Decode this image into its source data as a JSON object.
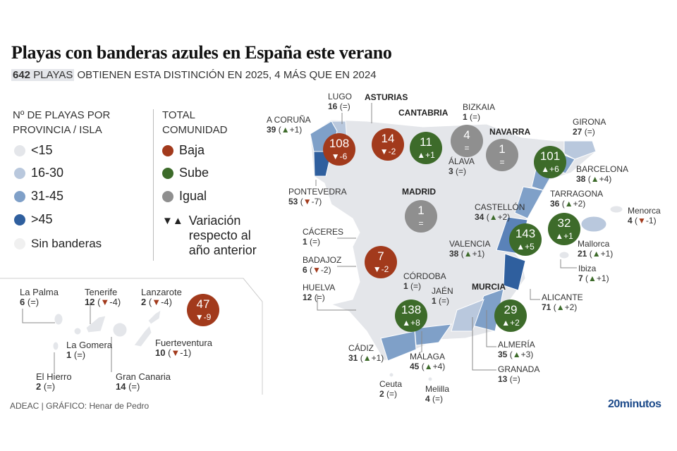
{
  "title": "Playas con banderas azules en España este verano",
  "subtitle": {
    "count": "642",
    "highlight_rest": "PLAYAS",
    "rest": " OBTIENEN ESTA DISTINCIÓN EN 2025, 4 MÁS QUE EN 2024"
  },
  "legend": {
    "scale_title_1": "Nº DE PLAYAS POR",
    "scale_title_2": "PROVINCIA / ISLA",
    "scale": [
      {
        "label": "<15",
        "color": "#e4e6ea"
      },
      {
        "label": "16-30",
        "color": "#b9c8dd"
      },
      {
        "label": "31-45",
        "color": "#7fa0c8"
      },
      {
        "label": ">45",
        "color": "#2f5f9e"
      },
      {
        "label": "Sin banderas",
        "color": "#f0f0f0"
      }
    ],
    "total_title_1": "TOTAL",
    "total_title_2": "COMUNIDAD",
    "totals": [
      {
        "label": "Baja",
        "color": "#a23a1c"
      },
      {
        "label": "Sube",
        "color": "#3d6b2a"
      },
      {
        "label": "Igual",
        "color": "#8f8f8f"
      }
    ],
    "variation_symbol": "▼▲",
    "variation_1": "Variación",
    "variation_2": "respecto al",
    "variation_3": "año anterior"
  },
  "community_labels": [
    "ASTURIAS",
    "CANTABRIA",
    "NAVARRA",
    "MADRID",
    "MURCIA"
  ],
  "communities": [
    {
      "total": "108",
      "change": "-6",
      "trend": "baja"
    },
    {
      "total": "14",
      "change": "-2",
      "trend": "baja"
    },
    {
      "total": "11",
      "change": "+1",
      "trend": "sube"
    },
    {
      "total": "4",
      "change": "=",
      "trend": "igual"
    },
    {
      "total": "1",
      "change": "=",
      "trend": "igual"
    },
    {
      "total": "101",
      "change": "+6",
      "trend": "sube"
    },
    {
      "total": "1",
      "change": "=",
      "trend": "igual"
    },
    {
      "total": "143",
      "change": "+5",
      "trend": "sube"
    },
    {
      "total": "32",
      "change": "+1",
      "trend": "sube"
    },
    {
      "total": "7",
      "change": "-2",
      "trend": "baja"
    },
    {
      "total": "138",
      "change": "+8",
      "trend": "sube"
    },
    {
      "total": "29",
      "change": "+2",
      "trend": "sube"
    },
    {
      "total": "47",
      "change": "-9",
      "trend": "baja"
    }
  ],
  "provinces": [
    {
      "name": "LUGO",
      "count": "16",
      "change": "="
    },
    {
      "name": "BIZKAIA",
      "count": "1",
      "change": "="
    },
    {
      "name": "A CORUÑA",
      "count": "39",
      "change": "+1"
    },
    {
      "name": "GIRONA",
      "count": "27",
      "change": "="
    },
    {
      "name": "ÁLAVA",
      "count": "3",
      "change": "="
    },
    {
      "name": "BARCELONA",
      "count": "38",
      "change": "+4"
    },
    {
      "name": "PONTEVEDRA",
      "count": "53",
      "change": "-7"
    },
    {
      "name": "TARRAGONA",
      "count": "36",
      "change": "+2"
    },
    {
      "name": "CASTELLÓN",
      "count": "34",
      "change": "+2"
    },
    {
      "name": "Menorca",
      "count": "4",
      "change": "-1"
    },
    {
      "name": "CÁCERES",
      "count": "1",
      "change": "="
    },
    {
      "name": "VALENCIA",
      "count": "38",
      "change": "+1"
    },
    {
      "name": "Mallorca",
      "count": "21",
      "change": "+1"
    },
    {
      "name": "BADAJOZ",
      "count": "6",
      "change": "-2"
    },
    {
      "name": "Ibiza",
      "count": "7",
      "change": "+1"
    },
    {
      "name": "CÓRDOBA",
      "count": "1",
      "change": "="
    },
    {
      "name": "HUELVA",
      "count": "12",
      "change": "="
    },
    {
      "name": "JAÉN",
      "count": "1",
      "change": "="
    },
    {
      "name": "ALICANTE",
      "count": "71",
      "change": "+2"
    },
    {
      "name": "ALMERÍA",
      "count": "35",
      "change": "+3"
    },
    {
      "name": "CÁDIZ",
      "count": "31",
      "change": "+1"
    },
    {
      "name": "MÁLAGA",
      "count": "45",
      "change": "+4"
    },
    {
      "name": "GRANADA",
      "count": "13",
      "change": "="
    },
    {
      "name": "Ceuta",
      "count": "2",
      "change": "="
    },
    {
      "name": "Melilla",
      "count": "4",
      "change": "="
    },
    {
      "name": "La Palma",
      "count": "6",
      "change": "="
    },
    {
      "name": "Tenerife",
      "count": "12",
      "change": "-4"
    },
    {
      "name": "Lanzarote",
      "count": "2",
      "change": "-4"
    },
    {
      "name": "La Gomera",
      "count": "1",
      "change": "="
    },
    {
      "name": "Fuerteventura",
      "count": "10",
      "change": "-1"
    },
    {
      "name": "El Hierro",
      "count": "2",
      "change": "="
    },
    {
      "name": "Gran Canaria",
      "count": "14",
      "change": "="
    }
  ],
  "footer": {
    "source": "ADEAC  |  GRÁFICO: Henar de Pedro",
    "brand": "20minutos"
  }
}
